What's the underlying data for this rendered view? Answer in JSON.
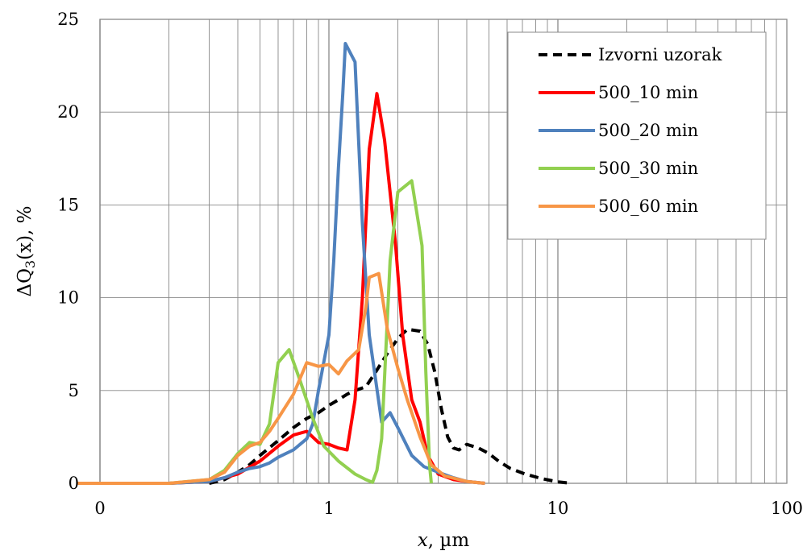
{
  "chart_data": {
    "type": "line",
    "xscale": "log",
    "xlim": [
      0.1,
      100
    ],
    "ylim": [
      0,
      25
    ],
    "xticks": [
      "0",
      "1",
      "10",
      "100"
    ],
    "yticks": [
      "0",
      "5",
      "10",
      "15",
      "20",
      "25"
    ],
    "xlabel_var": "x",
    "xlabel_unit": ", µm",
    "ylabel_prefix": "ΔQ",
    "ylabel_sub": "3",
    "ylabel_suffix": "(x), %",
    "grid": true,
    "legend_position": "top-right",
    "series": [
      {
        "name": "Izvorni uzorak",
        "color": "#000000",
        "dashed": true,
        "points": [
          [
            0.3,
            0
          ],
          [
            0.35,
            0.2
          ],
          [
            0.4,
            0.6
          ],
          [
            0.45,
            1.0
          ],
          [
            0.5,
            1.5
          ],
          [
            0.6,
            2.3
          ],
          [
            0.7,
            3.0
          ],
          [
            0.8,
            3.5
          ],
          [
            0.9,
            3.8
          ],
          [
            1.0,
            4.2
          ],
          [
            1.1,
            4.5
          ],
          [
            1.2,
            4.8
          ],
          [
            1.3,
            5.0
          ],
          [
            1.45,
            5.2
          ],
          [
            1.6,
            6.0
          ],
          [
            1.8,
            7.0
          ],
          [
            2.0,
            7.8
          ],
          [
            2.2,
            8.3
          ],
          [
            2.5,
            8.2
          ],
          [
            2.7,
            7.5
          ],
          [
            2.9,
            6.0
          ],
          [
            3.1,
            4.0
          ],
          [
            3.3,
            2.5
          ],
          [
            3.5,
            1.9
          ],
          [
            3.7,
            1.8
          ],
          [
            4.0,
            2.1
          ],
          [
            4.5,
            1.9
          ],
          [
            5.0,
            1.6
          ],
          [
            5.5,
            1.2
          ],
          [
            6.2,
            0.8
          ],
          [
            7.2,
            0.5
          ],
          [
            8.5,
            0.25
          ],
          [
            10,
            0.08
          ],
          [
            11.5,
            0
          ]
        ]
      },
      {
        "name": "500_10 min",
        "color": "#ff0000",
        "dashed": false,
        "points": [
          [
            0.08,
            0
          ],
          [
            0.2,
            0
          ],
          [
            0.3,
            0.1
          ],
          [
            0.35,
            0.3
          ],
          [
            0.4,
            0.5
          ],
          [
            0.5,
            1.2
          ],
          [
            0.6,
            2.0
          ],
          [
            0.7,
            2.6
          ],
          [
            0.8,
            2.8
          ],
          [
            0.9,
            2.2
          ],
          [
            1.0,
            2.1
          ],
          [
            1.1,
            1.9
          ],
          [
            1.2,
            1.8
          ],
          [
            1.3,
            4.5
          ],
          [
            1.4,
            10.0
          ],
          [
            1.5,
            18.0
          ],
          [
            1.62,
            21.0
          ],
          [
            1.75,
            18.5
          ],
          [
            1.95,
            13.0
          ],
          [
            2.1,
            8.0
          ],
          [
            2.3,
            4.5
          ],
          [
            2.5,
            3.3
          ],
          [
            2.7,
            1.5
          ],
          [
            3.0,
            0.5
          ],
          [
            3.5,
            0.2
          ],
          [
            4.0,
            0.1
          ],
          [
            4.8,
            0
          ]
        ]
      },
      {
        "name": "500_20 min",
        "color": "#4f81bd",
        "dashed": false,
        "points": [
          [
            0.08,
            0
          ],
          [
            0.2,
            0
          ],
          [
            0.3,
            0.1
          ],
          [
            0.35,
            0.3
          ],
          [
            0.4,
            0.6
          ],
          [
            0.45,
            0.8
          ],
          [
            0.5,
            0.9
          ],
          [
            0.55,
            1.1
          ],
          [
            0.6,
            1.4
          ],
          [
            0.7,
            1.8
          ],
          [
            0.8,
            2.4
          ],
          [
            0.85,
            3.2
          ],
          [
            0.9,
            5.0
          ],
          [
            1.0,
            8.0
          ],
          [
            1.05,
            12.0
          ],
          [
            1.1,
            17.0
          ],
          [
            1.15,
            21.0
          ],
          [
            1.18,
            23.7
          ],
          [
            1.3,
            22.7
          ],
          [
            1.4,
            14.0
          ],
          [
            1.5,
            8.0
          ],
          [
            1.7,
            3.3
          ],
          [
            1.85,
            3.8
          ],
          [
            2.0,
            3.0
          ],
          [
            2.3,
            1.5
          ],
          [
            2.6,
            0.9
          ],
          [
            3.0,
            0.6
          ],
          [
            3.5,
            0.3
          ],
          [
            4.0,
            0.1
          ],
          [
            4.8,
            0
          ]
        ]
      },
      {
        "name": "500_30 min",
        "color": "#92d050",
        "dashed": false,
        "points": [
          [
            0.08,
            0
          ],
          [
            0.2,
            0
          ],
          [
            0.3,
            0.2
          ],
          [
            0.35,
            0.7
          ],
          [
            0.4,
            1.6
          ],
          [
            0.45,
            2.2
          ],
          [
            0.5,
            2.1
          ],
          [
            0.55,
            3.2
          ],
          [
            0.6,
            6.5
          ],
          [
            0.67,
            7.2
          ],
          [
            0.75,
            5.5
          ],
          [
            0.85,
            3.5
          ],
          [
            0.95,
            2.0
          ],
          [
            1.1,
            1.2
          ],
          [
            1.3,
            0.5
          ],
          [
            1.45,
            0.2
          ],
          [
            1.55,
            0.05
          ],
          [
            1.62,
            0.7
          ],
          [
            1.7,
            2.4
          ],
          [
            1.85,
            12.0
          ],
          [
            2.0,
            15.7
          ],
          [
            2.3,
            16.3
          ],
          [
            2.55,
            12.8
          ],
          [
            2.65,
            6.0
          ],
          [
            2.75,
            1.0
          ],
          [
            2.8,
            0
          ]
        ]
      },
      {
        "name": "500_60 min",
        "color": "#f79646",
        "dashed": false,
        "points": [
          [
            0.08,
            0
          ],
          [
            0.2,
            0
          ],
          [
            0.3,
            0.2
          ],
          [
            0.35,
            0.6
          ],
          [
            0.4,
            1.5
          ],
          [
            0.45,
            2.0
          ],
          [
            0.5,
            2.2
          ],
          [
            0.55,
            2.8
          ],
          [
            0.6,
            3.5
          ],
          [
            0.7,
            4.8
          ],
          [
            0.8,
            6.5
          ],
          [
            0.9,
            6.3
          ],
          [
            1.0,
            6.4
          ],
          [
            1.1,
            5.9
          ],
          [
            1.2,
            6.6
          ],
          [
            1.35,
            7.2
          ],
          [
            1.45,
            9.5
          ],
          [
            1.5,
            11.1
          ],
          [
            1.65,
            11.3
          ],
          [
            1.8,
            8.3
          ],
          [
            2.0,
            6.2
          ],
          [
            2.2,
            4.5
          ],
          [
            2.5,
            2.5
          ],
          [
            2.8,
            1.0
          ],
          [
            3.2,
            0.4
          ],
          [
            4.0,
            0.1
          ],
          [
            4.8,
            0
          ]
        ]
      }
    ]
  }
}
